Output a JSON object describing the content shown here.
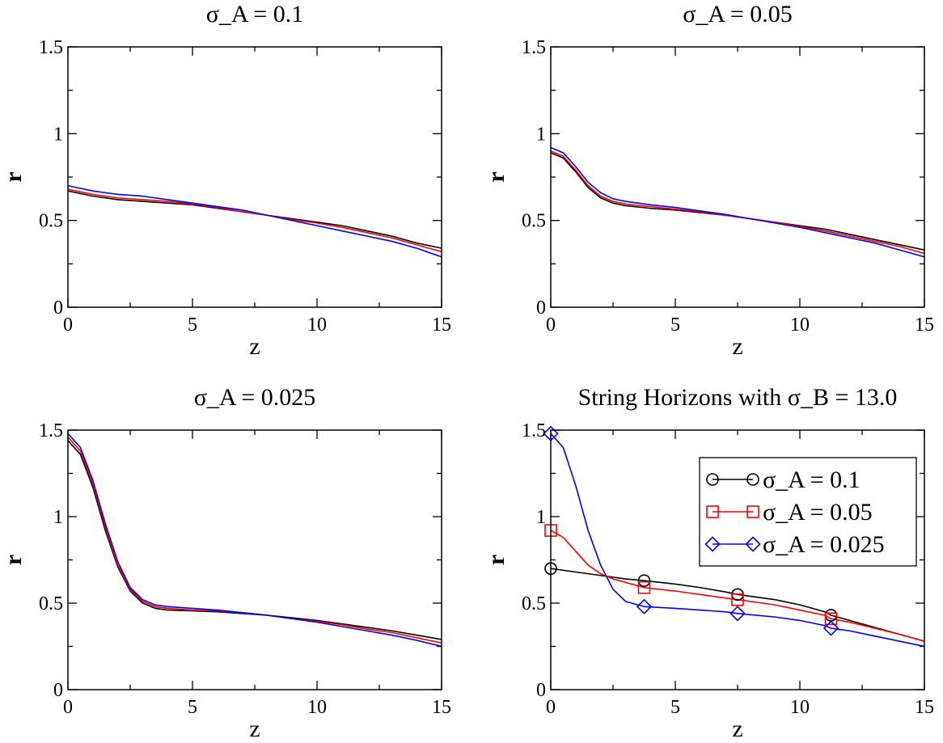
{
  "chart_data": [
    {
      "type": "line",
      "title": "σ_A = 0.1",
      "xlabel": "z",
      "ylabel": "r",
      "xlim": [
        0,
        15
      ],
      "ylim": [
        0,
        1.5
      ],
      "xticks": [
        0,
        5,
        10,
        15
      ],
      "yticks": [
        0,
        0.5,
        1,
        1.5
      ],
      "ytick_labels": [
        "0",
        "0.5",
        "1",
        "1.5"
      ],
      "grid": false,
      "series": [
        {
          "color": "#000000",
          "x": [
            0,
            1,
            2,
            3,
            4,
            5,
            6,
            7,
            8,
            9,
            10,
            11,
            12,
            13,
            14,
            15
          ],
          "y": [
            0.67,
            0.64,
            0.62,
            0.61,
            0.6,
            0.59,
            0.57,
            0.55,
            0.53,
            0.51,
            0.49,
            0.47,
            0.44,
            0.41,
            0.37,
            0.34
          ]
        },
        {
          "color": "#ff0000",
          "x": [
            0,
            1,
            2,
            3,
            4,
            5,
            6,
            7,
            8,
            9,
            10,
            11,
            12,
            13,
            14,
            15
          ],
          "y": [
            0.68,
            0.65,
            0.63,
            0.62,
            0.61,
            0.595,
            0.575,
            0.55,
            0.53,
            0.505,
            0.485,
            0.46,
            0.43,
            0.4,
            0.36,
            0.32
          ]
        },
        {
          "color": "#0000ff",
          "x": [
            0,
            1,
            2,
            3,
            4,
            5,
            6,
            7,
            8,
            9,
            10,
            11,
            12,
            13,
            14,
            15
          ],
          "y": [
            0.7,
            0.67,
            0.65,
            0.64,
            0.62,
            0.6,
            0.58,
            0.56,
            0.53,
            0.5,
            0.47,
            0.44,
            0.41,
            0.38,
            0.34,
            0.29
          ]
        }
      ]
    },
    {
      "type": "line",
      "title": "σ_A = 0.05",
      "xlabel": "z",
      "ylabel": "r",
      "xlim": [
        0,
        15
      ],
      "ylim": [
        0,
        1.5
      ],
      "xticks": [
        0,
        5,
        10,
        15
      ],
      "yticks": [
        0,
        0.5,
        1,
        1.5
      ],
      "ytick_labels": [
        "0",
        "0.5",
        "1",
        "1.5"
      ],
      "grid": false,
      "series": [
        {
          "color": "#000000",
          "x": [
            0,
            0.5,
            1,
            1.5,
            2,
            2.5,
            3,
            4,
            5,
            6,
            7,
            8,
            9,
            10,
            11,
            12,
            13,
            14,
            15
          ],
          "y": [
            0.89,
            0.86,
            0.78,
            0.69,
            0.63,
            0.6,
            0.585,
            0.57,
            0.56,
            0.545,
            0.53,
            0.51,
            0.49,
            0.47,
            0.45,
            0.42,
            0.39,
            0.36,
            0.33
          ]
        },
        {
          "color": "#ff0000",
          "x": [
            0,
            0.5,
            1,
            1.5,
            2,
            2.5,
            3,
            4,
            5,
            6,
            7,
            8,
            9,
            10,
            11,
            12,
            13,
            14,
            15
          ],
          "y": [
            0.9,
            0.87,
            0.79,
            0.7,
            0.64,
            0.61,
            0.595,
            0.58,
            0.565,
            0.55,
            0.53,
            0.51,
            0.49,
            0.465,
            0.44,
            0.41,
            0.38,
            0.35,
            0.31
          ]
        },
        {
          "color": "#0000ff",
          "x": [
            0,
            0.5,
            1,
            1.5,
            2,
            2.5,
            3,
            4,
            5,
            6,
            7,
            8,
            9,
            10,
            11,
            12,
            13,
            14,
            15
          ],
          "y": [
            0.92,
            0.89,
            0.81,
            0.72,
            0.66,
            0.625,
            0.61,
            0.59,
            0.575,
            0.555,
            0.535,
            0.51,
            0.485,
            0.46,
            0.43,
            0.4,
            0.37,
            0.33,
            0.29
          ]
        }
      ]
    },
    {
      "type": "line",
      "title": "σ_A = 0.025",
      "xlabel": "z",
      "ylabel": "r",
      "xlim": [
        0,
        15
      ],
      "ylim": [
        0,
        1.5
      ],
      "xticks": [
        0,
        5,
        10,
        15
      ],
      "yticks": [
        0,
        0.5,
        1,
        1.5
      ],
      "ytick_labels": [
        "0",
        "0.5",
        "1",
        "1.5"
      ],
      "grid": false,
      "series": [
        {
          "color": "#000000",
          "x": [
            0,
            0.5,
            1,
            1.5,
            2,
            2.5,
            3,
            3.5,
            4,
            5,
            6,
            7,
            8,
            9,
            10,
            11,
            12,
            13,
            14,
            15
          ],
          "y": [
            1.44,
            1.36,
            1.17,
            0.92,
            0.71,
            0.57,
            0.5,
            0.47,
            0.46,
            0.455,
            0.45,
            0.44,
            0.43,
            0.415,
            0.4,
            0.38,
            0.36,
            0.34,
            0.315,
            0.29
          ]
        },
        {
          "color": "#ff0000",
          "x": [
            0,
            0.5,
            1,
            1.5,
            2,
            2.5,
            3,
            3.5,
            4,
            5,
            6,
            7,
            8,
            9,
            10,
            11,
            12,
            13,
            14,
            15
          ],
          "y": [
            1.46,
            1.38,
            1.19,
            0.94,
            0.72,
            0.58,
            0.51,
            0.48,
            0.47,
            0.46,
            0.455,
            0.445,
            0.43,
            0.41,
            0.395,
            0.375,
            0.35,
            0.33,
            0.3,
            0.27
          ]
        },
        {
          "color": "#0000ff",
          "x": [
            0,
            0.5,
            1,
            1.5,
            2,
            2.5,
            3,
            3.5,
            4,
            5,
            6,
            7,
            8,
            9,
            10,
            11,
            12,
            13,
            14,
            15
          ],
          "y": [
            1.48,
            1.4,
            1.21,
            0.96,
            0.74,
            0.59,
            0.52,
            0.49,
            0.48,
            0.47,
            0.46,
            0.445,
            0.43,
            0.41,
            0.39,
            0.365,
            0.34,
            0.315,
            0.285,
            0.25
          ]
        }
      ]
    },
    {
      "type": "line",
      "title": "String Horizons with σ_B = 13.0",
      "xlabel": "z",
      "ylabel": "r",
      "xlim": [
        0,
        15
      ],
      "ylim": [
        0,
        1.5
      ],
      "xticks": [
        0,
        5,
        10,
        15
      ],
      "yticks": [
        0,
        0.5,
        1,
        1.5
      ],
      "ytick_labels": [
        "0",
        "0.5",
        "1",
        "1.5"
      ],
      "grid": false,
      "legend": "top-right",
      "series": [
        {
          "name": "σ_A = 0.1",
          "color": "#000000",
          "marker": "circle",
          "x": [
            0,
            1,
            2,
            3,
            3.75,
            5,
            6,
            7,
            7.5,
            9,
            10,
            11,
            11.25,
            12,
            13,
            14,
            15
          ],
          "y": [
            0.7,
            0.68,
            0.66,
            0.64,
            0.63,
            0.61,
            0.59,
            0.565,
            0.55,
            0.52,
            0.49,
            0.45,
            0.43,
            0.4,
            0.36,
            0.32,
            0.28
          ],
          "marker_x": [
            0,
            3.75,
            7.5,
            11.25
          ],
          "marker_y": [
            0.7,
            0.63,
            0.55,
            0.43
          ]
        },
        {
          "name": "σ_A = 0.05",
          "color": "#ff0000",
          "marker": "square",
          "x": [
            0,
            0.5,
            1,
            1.5,
            2,
            2.5,
            3,
            3.75,
            5,
            6,
            7,
            7.5,
            9,
            10,
            11,
            11.25,
            12,
            13,
            14,
            15
          ],
          "y": [
            0.92,
            0.88,
            0.8,
            0.72,
            0.67,
            0.64,
            0.62,
            0.59,
            0.57,
            0.55,
            0.53,
            0.52,
            0.49,
            0.46,
            0.43,
            0.41,
            0.39,
            0.355,
            0.32,
            0.28
          ],
          "marker_x": [
            0,
            3.75,
            7.5,
            11.25
          ],
          "marker_y": [
            0.92,
            0.59,
            0.52,
            0.41
          ]
        },
        {
          "name": "σ_A = 0.025",
          "color": "#0000ff",
          "marker": "diamond",
          "x": [
            0,
            0.5,
            1,
            1.5,
            2,
            2.5,
            3,
            3.75,
            5,
            6,
            7,
            7.5,
            9,
            10,
            11,
            11.25,
            12,
            13,
            14,
            15
          ],
          "y": [
            1.48,
            1.4,
            1.18,
            0.92,
            0.72,
            0.58,
            0.51,
            0.48,
            0.47,
            0.46,
            0.45,
            0.44,
            0.42,
            0.4,
            0.37,
            0.355,
            0.34,
            0.31,
            0.28,
            0.25
          ],
          "marker_x": [
            0,
            3.75,
            7.5,
            11.25
          ],
          "marker_y": [
            1.48,
            0.48,
            0.44,
            0.355
          ]
        }
      ]
    }
  ]
}
